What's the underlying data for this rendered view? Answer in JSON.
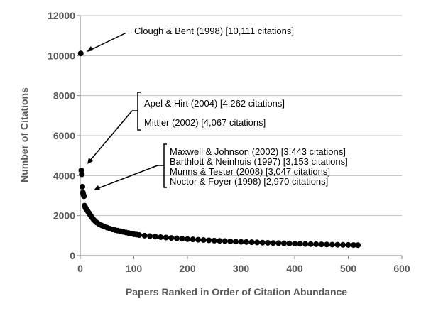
{
  "chart_data": {
    "type": "scatter",
    "title": "",
    "xlabel": "Papers Ranked in Order of Citation Abundance",
    "ylabel": "Number of Citations",
    "xlim": [
      0,
      600
    ],
    "ylim": [
      0,
      12000
    ],
    "x_ticks": [
      0,
      100,
      200,
      300,
      400,
      500,
      600
    ],
    "y_ticks": [
      0,
      2000,
      4000,
      6000,
      8000,
      10000,
      12000
    ],
    "grid": "horizontal",
    "legend": "none",
    "marker_color": "#000000",
    "gridline_color": "#bfbfbf",
    "series": [
      {
        "points": [
          [
            1,
            10111
          ],
          [
            2,
            4262
          ],
          [
            3,
            4067
          ],
          [
            4,
            3443
          ],
          [
            5,
            3153
          ],
          [
            6,
            3047
          ],
          [
            7,
            2970
          ],
          [
            8,
            2500
          ],
          [
            9,
            2450
          ],
          [
            10,
            2380
          ],
          [
            12,
            2300
          ],
          [
            14,
            2220
          ],
          [
            16,
            2140
          ],
          [
            18,
            2060
          ],
          [
            20,
            1980
          ],
          [
            22,
            1900
          ],
          [
            25,
            1800
          ],
          [
            28,
            1720
          ],
          [
            31,
            1650
          ],
          [
            35,
            1580
          ],
          [
            40,
            1510
          ],
          [
            45,
            1450
          ],
          [
            50,
            1400
          ],
          [
            55,
            1350
          ],
          [
            60,
            1310
          ],
          [
            65,
            1280
          ],
          [
            70,
            1250
          ],
          [
            75,
            1220
          ],
          [
            80,
            1190
          ],
          [
            85,
            1160
          ],
          [
            90,
            1130
          ],
          [
            95,
            1100
          ],
          [
            100,
            1070
          ],
          [
            105,
            1050
          ],
          [
            110,
            1030
          ],
          [
            120,
            1000
          ],
          [
            130,
            975
          ],
          [
            140,
            950
          ],
          [
            150,
            925
          ],
          [
            160,
            905
          ],
          [
            170,
            885
          ],
          [
            180,
            865
          ],
          [
            190,
            845
          ],
          [
            200,
            825
          ],
          [
            210,
            810
          ],
          [
            220,
            795
          ],
          [
            230,
            780
          ],
          [
            240,
            765
          ],
          [
            250,
            750
          ],
          [
            260,
            738
          ],
          [
            270,
            726
          ],
          [
            280,
            714
          ],
          [
            290,
            702
          ],
          [
            300,
            690
          ],
          [
            310,
            680
          ],
          [
            320,
            670
          ],
          [
            330,
            660
          ],
          [
            340,
            650
          ],
          [
            350,
            640
          ],
          [
            360,
            632
          ],
          [
            370,
            624
          ],
          [
            380,
            616
          ],
          [
            390,
            608
          ],
          [
            400,
            600
          ],
          [
            410,
            592
          ],
          [
            420,
            585
          ],
          [
            430,
            578
          ],
          [
            440,
            571
          ],
          [
            450,
            564
          ],
          [
            460,
            558
          ],
          [
            470,
            552
          ],
          [
            480,
            546
          ],
          [
            490,
            540
          ],
          [
            500,
            535
          ],
          [
            510,
            530
          ],
          [
            518,
            525
          ]
        ]
      }
    ],
    "annotations": [
      {
        "text": "Clough & Bent (1998) [10,111 citations]"
      },
      {
        "text": "Apel & Hirt (2004) [4,262 citations]"
      },
      {
        "text": "Mittler (2002) [4,067 citations]"
      },
      {
        "text": "Maxwell & Johnson (2002) [3,443 citations]"
      },
      {
        "text": "Barthlott & Neinhuis  (1997) [3,153 citations]"
      },
      {
        "text": "Munns & Tester (2008) [3,047 citations]"
      },
      {
        "text": "Noctor & Foyer (1998) [2,970 citations]"
      }
    ]
  }
}
